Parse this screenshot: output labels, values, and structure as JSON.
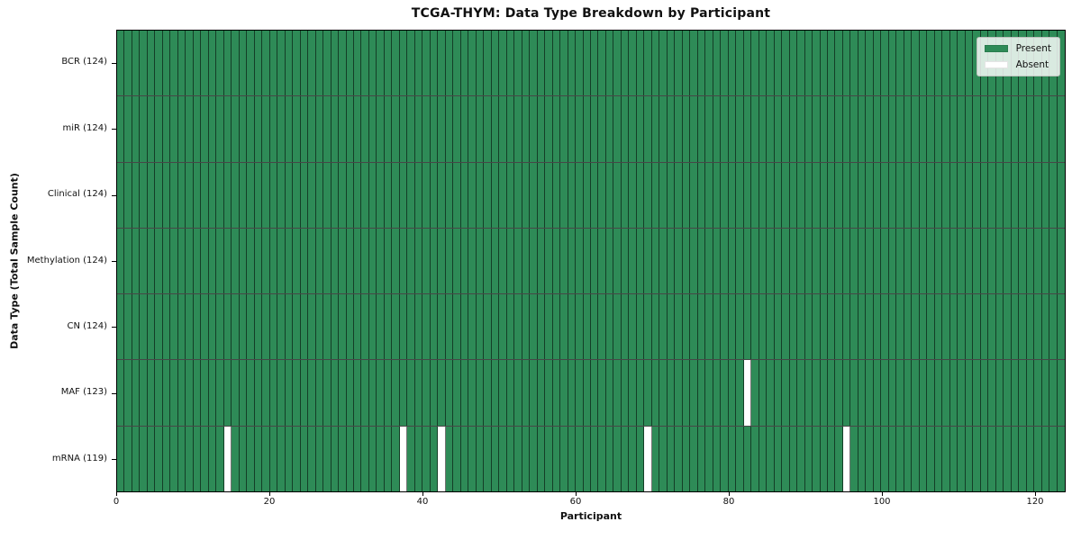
{
  "chart_data": {
    "type": "heatmap",
    "title": "TCGA-THYM: Data Type Breakdown by Participant",
    "xlabel": "Participant",
    "ylabel": "Data Type (Total Sample Count)",
    "xlim": [
      0,
      124
    ],
    "n_participants": 124,
    "x_ticks": [
      0,
      20,
      40,
      60,
      80,
      100,
      120
    ],
    "grid": "off",
    "legend_position": "upper right",
    "rows": [
      {
        "label": "BCR (124)",
        "data_type": "BCR",
        "present_count": 124,
        "absent_participants": []
      },
      {
        "label": "miR (124)",
        "data_type": "miR",
        "present_count": 124,
        "absent_participants": []
      },
      {
        "label": "Clinical (124)",
        "data_type": "Clinical",
        "present_count": 124,
        "absent_participants": []
      },
      {
        "label": "Methylation (124)",
        "data_type": "Methylation",
        "present_count": 124,
        "absent_participants": []
      },
      {
        "label": "CN (124)",
        "data_type": "CN",
        "present_count": 124,
        "absent_participants": []
      },
      {
        "label": "MAF (123)",
        "data_type": "MAF",
        "present_count": 123,
        "absent_participants": [
          82
        ]
      },
      {
        "label": "mRNA (119)",
        "data_type": "mRNA",
        "present_count": 119,
        "absent_participants": [
          14,
          37,
          42,
          69,
          95
        ]
      }
    ],
    "legend": [
      {
        "label": "Present",
        "color": "#2e8b57"
      },
      {
        "label": "Absent",
        "color": "#ffffff"
      }
    ],
    "colors": {
      "present": "#2e8b57",
      "absent": "#ffffff",
      "cell_edge": "#1d4630",
      "spine": "#000000",
      "background": "#ffffff"
    }
  }
}
